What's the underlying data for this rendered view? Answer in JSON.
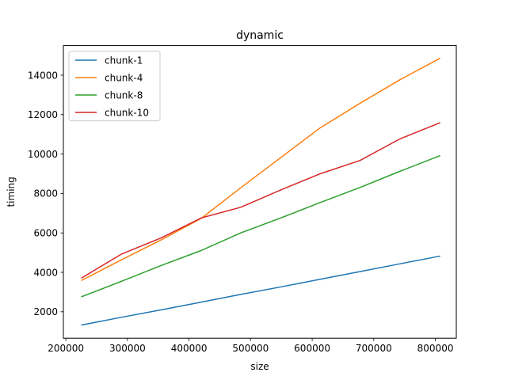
{
  "chart_data": {
    "type": "line",
    "title": "dynamic",
    "xlabel": "size",
    "ylabel": "timing",
    "xlim": [
      196000,
      834000
    ],
    "ylim": [
      660,
      15500
    ],
    "xticks": [
      200000,
      300000,
      400000,
      500000,
      600000,
      700000,
      800000
    ],
    "xtick_labels": [
      "200000",
      "300000",
      "400000",
      "500000",
      "600000",
      "700000",
      "800000"
    ],
    "yticks": [
      2000,
      4000,
      6000,
      8000,
      10000,
      12000,
      14000
    ],
    "ytick_labels": [
      "2000",
      "4000",
      "6000",
      "8000",
      "10000",
      "12000",
      "14000"
    ],
    "grid": false,
    "legend_position": "upper-left",
    "x": [
      226000,
      290000,
      355000,
      420000,
      484000,
      549000,
      613000,
      678000,
      742000,
      807000
    ],
    "series": [
      {
        "name": "chunk-1",
        "color": "#1f77b4",
        "values": [
          1330,
          1720,
          2100,
          2490,
          2880,
          3260,
          3650,
          4040,
          4430,
          4820
        ]
      },
      {
        "name": "chunk-4",
        "color": "#ff7f0e",
        "values": [
          3600,
          4630,
          5650,
          6740,
          8290,
          9820,
          11330,
          12580,
          13760,
          14850
        ]
      },
      {
        "name": "chunk-8",
        "color": "#2ca02c",
        "values": [
          2770,
          3540,
          4350,
          5110,
          6000,
          6760,
          7540,
          8310,
          9120,
          9910
        ]
      },
      {
        "name": "chunk-10",
        "color": "#d62728",
        "values": [
          3720,
          4920,
          5750,
          6760,
          7300,
          8180,
          9000,
          9680,
          10760,
          11580
        ]
      }
    ]
  }
}
